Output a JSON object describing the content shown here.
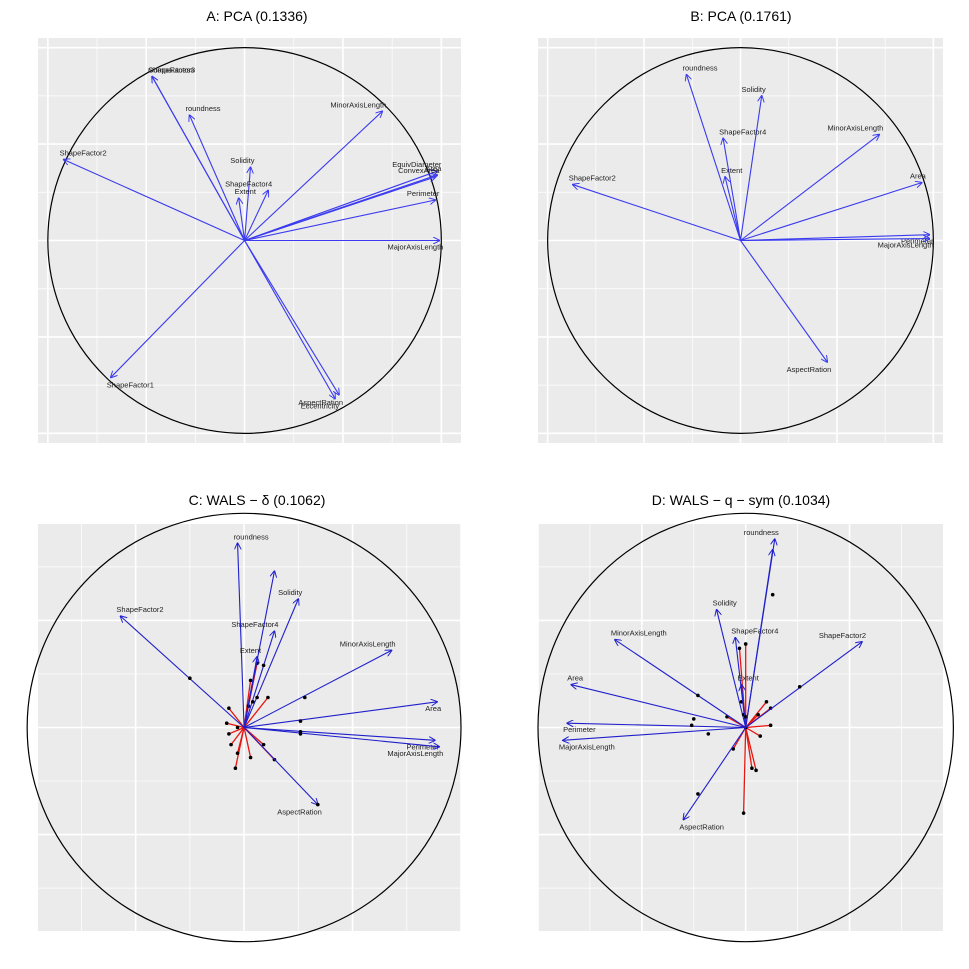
{
  "colors": {
    "panel_background": "#ebebeb",
    "grid": "#ffffff",
    "circle": "#000000",
    "pca_arrow": "#3a3af0",
    "wals_arrow": "#1f1fcc",
    "wals_red": "#e8150f",
    "point": "#000000"
  },
  "chart_data": [
    {
      "type": "biplot",
      "title": "A: PCA (0.1336)",
      "xlim": [
        -1.05,
        1.1
      ],
      "ylim": [
        -1.05,
        1.05
      ],
      "grid": true,
      "legend": "none",
      "arrows": [
        {
          "label": "ShapeFactor3",
          "x": -0.47,
          "y": 0.85
        },
        {
          "label": "Compactness",
          "x": -0.47,
          "y": 0.85
        },
        {
          "label": "roundness",
          "x": -0.28,
          "y": 0.65
        },
        {
          "label": "MinorAxisLength",
          "x": 0.7,
          "y": 0.67
        },
        {
          "label": "ShapeFactor2",
          "x": -0.92,
          "y": 0.42
        },
        {
          "label": "EquivDiameter",
          "x": 0.98,
          "y": 0.36
        },
        {
          "label": "Area",
          "x": 0.98,
          "y": 0.34
        },
        {
          "label": "ConvexArea",
          "x": 0.97,
          "y": 0.33
        },
        {
          "label": "Solidity",
          "x": 0.03,
          "y": 0.38
        },
        {
          "label": "ShapeFactor4",
          "x": 0.12,
          "y": 0.26
        },
        {
          "label": "Extent",
          "x": -0.03,
          "y": 0.22
        },
        {
          "label": "Perimeter",
          "x": 0.97,
          "y": 0.21
        },
        {
          "label": "MajorAxisLength",
          "x": 0.99,
          "y": 0.0
        },
        {
          "label": "ShapeFactor1",
          "x": -0.68,
          "y": -0.71
        },
        {
          "label": "AspectRation",
          "x": 0.48,
          "y": -0.8
        },
        {
          "label": "Eccentricity",
          "x": 0.46,
          "y": -0.82
        }
      ],
      "spokes": []
    },
    {
      "type": "biplot",
      "title": "B: PCA (0.1761)",
      "xlim": [
        -1.05,
        1.05
      ],
      "ylim": [
        -1.05,
        1.05
      ],
      "grid": true,
      "legend": "none",
      "arrows": [
        {
          "label": "roundness",
          "x": -0.28,
          "y": 0.86
        },
        {
          "label": "Solidity",
          "x": 0.11,
          "y": 0.75
        },
        {
          "label": "ShapeFactor4",
          "x": -0.09,
          "y": 0.53
        },
        {
          "label": "MinorAxisLength",
          "x": 0.72,
          "y": 0.55
        },
        {
          "label": "Extent",
          "x": -0.08,
          "y": 0.33
        },
        {
          "label": "ShapeFactor2",
          "x": -0.87,
          "y": 0.29
        },
        {
          "label": "Area",
          "x": 0.94,
          "y": 0.3
        },
        {
          "label": "Perimeter",
          "x": 0.98,
          "y": 0.03
        },
        {
          "label": "MajorAxisLength",
          "x": 0.98,
          "y": 0.01
        },
        {
          "label": "AspectRation",
          "x": 0.45,
          "y": -0.63
        }
      ],
      "spokes": []
    },
    {
      "type": "biplot",
      "title": "C: WALS − δ (0.1062)",
      "xlim": [
        -0.95,
        1.0
      ],
      "ylim": [
        -0.95,
        0.95
      ],
      "grid": true,
      "legend": "none",
      "arrows": [
        {
          "label": "roundness",
          "x": -0.03,
          "y": 0.86,
          "px": -0.03,
          "py": 0.0
        },
        {
          "label": "ShapeFactor2",
          "x": -0.57,
          "y": 0.52,
          "px": -0.25,
          "py": 0.23
        },
        {
          "label": "Solidity",
          "x": 0.25,
          "y": 0.6,
          "px": 0.06,
          "py": 0.14
        },
        {
          "label": "ShapeFactor4",
          "x": 0.14,
          "y": 0.45,
          "px": 0.04,
          "py": 0.12
        },
        {
          "label": "Extent",
          "x": 0.06,
          "y": 0.33,
          "px": 0.02,
          "py": 0.1
        },
        {
          "label": "MinorAxisLength",
          "x": 0.68,
          "y": 0.36,
          "px": 0.28,
          "py": 0.14
        },
        {
          "label": "Area",
          "x": 0.89,
          "y": 0.12,
          "px": 0.26,
          "py": 0.03
        },
        {
          "label": "Perimeter",
          "x": 0.88,
          "y": -0.06,
          "px": 0.26,
          "py": -0.02
        },
        {
          "label": "MajorAxisLength",
          "x": 0.9,
          "y": -0.09,
          "px": 0.26,
          "py": -0.03
        },
        {
          "label": "AspectRation",
          "x": 0.34,
          "y": -0.36,
          "px": 0.34,
          "py": -0.36
        },
        {
          "label": "",
          "x": 0.14,
          "y": 0.73,
          "px": 0.09,
          "py": 0.29
        }
      ],
      "spokes": [
        {
          "x": 0.03,
          "y": 0.22
        },
        {
          "x": 0.06,
          "y": 0.3
        },
        {
          "x": 0.11,
          "y": 0.14
        },
        {
          "x": -0.07,
          "y": 0.09
        },
        {
          "x": -0.08,
          "y": 0.02
        },
        {
          "x": -0.07,
          "y": -0.03
        },
        {
          "x": -0.06,
          "y": -0.08
        },
        {
          "x": -0.04,
          "y": -0.19
        },
        {
          "x": 0.03,
          "y": -0.14
        },
        {
          "x": 0.09,
          "y": -0.08
        },
        {
          "x": 0.14,
          "y": -0.15
        },
        {
          "x": -0.03,
          "y": -0.12
        }
      ]
    },
    {
      "type": "biplot",
      "title": "D: WALS − q − sym (0.1034)",
      "xlim": [
        -1.0,
        0.95
      ],
      "ylim": [
        -0.95,
        0.95
      ],
      "grid": true,
      "legend": "none",
      "arrows": [
        {
          "label": "roundness",
          "x": 0.14,
          "y": 0.88,
          "px": 0.0,
          "py": 0.0
        },
        {
          "label": "Solidity",
          "x": -0.14,
          "y": 0.55,
          "px": -0.02,
          "py": 0.12
        },
        {
          "label": "ShapeFactor4",
          "x": -0.05,
          "y": 0.42,
          "px": -0.01,
          "py": 0.06
        },
        {
          "label": "Extent",
          "x": -0.02,
          "y": 0.2,
          "px": 0.0,
          "py": 0.05
        },
        {
          "label": "MinorAxisLength",
          "x": -0.63,
          "y": 0.41,
          "px": -0.23,
          "py": 0.15
        },
        {
          "label": "ShapeFactor2",
          "x": 0.56,
          "y": 0.4,
          "px": 0.26,
          "py": 0.19
        },
        {
          "label": "Area",
          "x": -0.84,
          "y": 0.2,
          "px": -0.25,
          "py": 0.04
        },
        {
          "label": "Perimeter",
          "x": -0.86,
          "y": 0.02,
          "px": -0.26,
          "py": 0.01
        },
        {
          "label": "MajorAxisLength",
          "x": -0.88,
          "y": -0.06,
          "px": -0.18,
          "py": -0.03
        },
        {
          "label": "AspectRation",
          "x": -0.3,
          "y": -0.43,
          "px": -0.23,
          "py": -0.31
        },
        {
          "label": "",
          "x": 0.13,
          "y": 0.83,
          "px": 0.13,
          "py": 0.62
        }
      ],
      "spokes": [
        {
          "x": -0.03,
          "y": 0.37
        },
        {
          "x": 0.0,
          "y": 0.39
        },
        {
          "x": 0.1,
          "y": 0.12
        },
        {
          "x": 0.12,
          "y": 0.09
        },
        {
          "x": 0.12,
          "y": 0.01
        },
        {
          "x": 0.07,
          "y": -0.04
        },
        {
          "x": 0.05,
          "y": -0.2
        },
        {
          "x": -0.01,
          "y": -0.4
        },
        {
          "x": -0.06,
          "y": -0.1
        },
        {
          "x": -0.09,
          "y": 0.05
        },
        {
          "x": 0.06,
          "y": 0.06
        },
        {
          "x": 0.03,
          "y": -0.19
        }
      ]
    }
  ]
}
